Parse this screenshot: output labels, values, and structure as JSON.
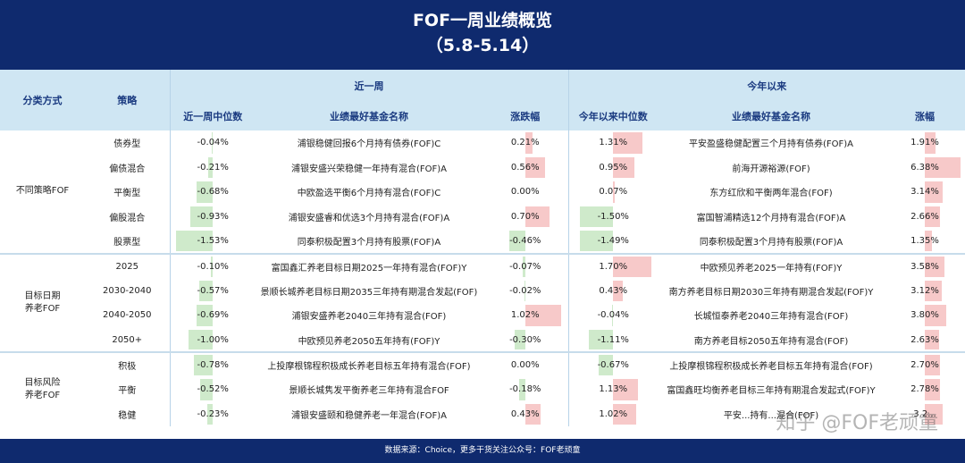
{
  "header": {
    "title": "FOF一周业绩概览",
    "date_range": "（5.8-5.14）"
  },
  "columns": {
    "category": "分类方式",
    "strategy": "策略",
    "week_group": "近一周",
    "ytd_group": "今年以来",
    "week_median": "近一周中位数",
    "week_best": "业绩最好基金名称",
    "week_change": "涨跌幅",
    "ytd_median": "今年以来中位数",
    "ytd_best": "业绩最好基金名称",
    "ytd_change": "涨幅"
  },
  "groups": [
    {
      "name": "不同策略FOF",
      "rows": [
        {
          "strategy": "债券型",
          "wm": "-0.04%",
          "wm_v": -0.04,
          "wb": "浦银稳健回报6个月持有债券(FOF)C",
          "wc": "0.21%",
          "wc_v": 0.21,
          "ym": "1.31%",
          "ym_v": 1.31,
          "yb": "平安盈盛稳健配置三个月持有债券(FOF)A",
          "yc": "1.91%",
          "yc_v": 1.91
        },
        {
          "strategy": "偏债混合",
          "wm": "-0.21%",
          "wm_v": -0.21,
          "wb": "浦银安盛兴荣稳健一年持有混合(FOF)A",
          "wc": "0.56%",
          "wc_v": 0.56,
          "ym": "0.95%",
          "ym_v": 0.95,
          "yb": "前海开源裕源(FOF)",
          "yc": "6.38%",
          "yc_v": 6.38
        },
        {
          "strategy": "平衡型",
          "wm": "-0.68%",
          "wm_v": -0.68,
          "wb": "中欧盈选平衡6个月持有混合(FOF)C",
          "wc": "0.00%",
          "wc_v": 0.0,
          "ym": "0.07%",
          "ym_v": 0.07,
          "yb": "东方红欣和平衡两年混合(FOF)",
          "yc": "3.14%",
          "yc_v": 3.14
        },
        {
          "strategy": "偏股混合",
          "wm": "-0.93%",
          "wm_v": -0.93,
          "wb": "浦银安盛睿和优选3个月持有混合(FOF)A",
          "wc": "0.70%",
          "wc_v": 0.7,
          "ym": "-1.50%",
          "ym_v": -1.5,
          "yb": "富国智浦精选12个月持有混合(FOF)A",
          "yc": "2.66%",
          "yc_v": 2.66
        },
        {
          "strategy": "股票型",
          "wm": "-1.53%",
          "wm_v": -1.53,
          "wb": "同泰积极配置3个月持有股票(FOF)A",
          "wc": "-0.46%",
          "wc_v": -0.46,
          "ym": "-1.49%",
          "ym_v": -1.49,
          "yb": "同泰积极配置3个月持有股票(FOF)A",
          "yc": "1.35%",
          "yc_v": 1.35
        }
      ]
    },
    {
      "name": "目标日期\n养老FOF",
      "rows": [
        {
          "strategy": "2025",
          "wm": "-0.10%",
          "wm_v": -0.1,
          "wb": "富国鑫汇养老目标日期2025一年持有混合(FOF)Y",
          "wc": "-0.07%",
          "wc_v": -0.07,
          "ym": "1.70%",
          "ym_v": 1.7,
          "yb": "中欧预见养老2025一年持有(FOF)Y",
          "yc": "3.58%",
          "yc_v": 3.58
        },
        {
          "strategy": "2030-2040",
          "wm": "-0.57%",
          "wm_v": -0.57,
          "wb": "景顺长城养老目标日期2035三年持有期混合发起(FOF)",
          "wc": "-0.02%",
          "wc_v": -0.02,
          "ym": "0.43%",
          "ym_v": 0.43,
          "yb": "南方养老目标日期2030三年持有期混合发起(FOF)Y",
          "yc": "3.12%",
          "yc_v": 3.12
        },
        {
          "strategy": "2040-2050",
          "wm": "-0.69%",
          "wm_v": -0.69,
          "wb": "浦银安盛养老2040三年持有混合(FOF)",
          "wc": "1.02%",
          "wc_v": 1.02,
          "ym": "-0.04%",
          "ym_v": -0.04,
          "yb": "长城恒泰养老2040三年持有混合(FOF)",
          "yc": "3.80%",
          "yc_v": 3.8
        },
        {
          "strategy": "2050+",
          "wm": "-1.00%",
          "wm_v": -1.0,
          "wb": "中欧预见养老2050五年持有(FOF)Y",
          "wc": "-0.30%",
          "wc_v": -0.3,
          "ym": "-1.11%",
          "ym_v": -1.11,
          "yb": "南方养老目标2050五年持有混合(FOF)",
          "yc": "2.63%",
          "yc_v": 2.63
        }
      ]
    },
    {
      "name": "目标风险\n养老FOF",
      "rows": [
        {
          "strategy": "积极",
          "wm": "-0.78%",
          "wm_v": -0.78,
          "wb": "上投摩根锦程积极成长养老目标五年持有混合(FOF)",
          "wc": "0.00%",
          "wc_v": 0.0,
          "ym": "-0.67%",
          "ym_v": -0.67,
          "yb": "上投摩根锦程积极成长养老目标五年持有混合(FOF)",
          "yc": "2.70%",
          "yc_v": 2.7
        },
        {
          "strategy": "平衡",
          "wm": "-0.52%",
          "wm_v": -0.52,
          "wb": "景顺长城隽发平衡养老三年持有混合FOF",
          "wc": "-0.18%",
          "wc_v": -0.18,
          "ym": "1.13%",
          "ym_v": 1.13,
          "yb": "富国鑫旺均衡养老目标三年持有期混合发起式(FOF)Y",
          "yc": "2.78%",
          "yc_v": 2.78
        },
        {
          "strategy": "稳健",
          "wm": "-0.23%",
          "wm_v": -0.23,
          "wb": "浦银安盛颐和稳健养老一年混合(FOF)A",
          "wc": "0.43%",
          "wc_v": 0.43,
          "ym": "1.02%",
          "ym_v": 1.02,
          "yb": "平安...持有...混合(FOF)",
          "yc": "3.2...",
          "yc_v": 3.2
        }
      ]
    }
  ],
  "footer": "数据来源：Choice，更多干货关注公众号：FOF老顽童",
  "watermark": "知乎 @FOF老顽童",
  "colors": {
    "navy": "#0f2a6e",
    "header_bg": "#cfe6f3",
    "pos_bar": "#f7c9c9",
    "neg_bar": "#cfeacb"
  }
}
